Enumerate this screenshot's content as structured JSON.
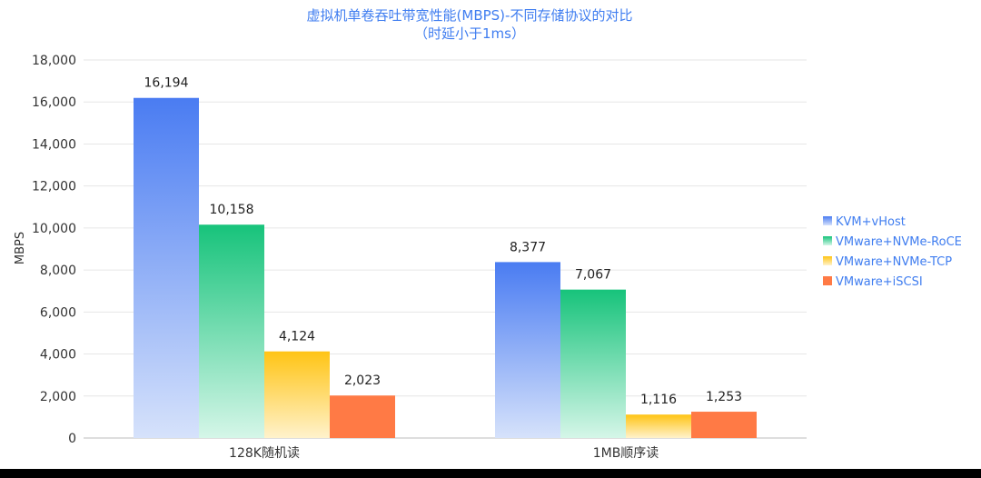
{
  "chart_data": {
    "type": "bar",
    "title": "虚拟机单卷吞吐带宽性能(MBPS)-不同存储协议的对比",
    "subtitle": "（时延小于1ms）",
    "xlabel": "",
    "ylabel": "MBPS",
    "ylim": [
      0,
      18000
    ],
    "yticks": [
      0,
      2000,
      4000,
      6000,
      8000,
      10000,
      12000,
      14000,
      16000,
      18000
    ],
    "ytick_labels": [
      "0",
      "2,000",
      "4,000",
      "6,000",
      "8,000",
      "10,000",
      "12,000",
      "14,000",
      "16,000",
      "18,000"
    ],
    "grid": true,
    "legend_position": "right",
    "categories": [
      "128K随机读",
      "1MB顺序读"
    ],
    "series": [
      {
        "name": "KVM+vHost",
        "values": [
          16194,
          8377
        ],
        "labels": [
          "16,194",
          "8,377"
        ],
        "color": "#4a7cf2",
        "color_light": "#d6e2fb"
      },
      {
        "name": "VMware+NVMe-RoCE",
        "values": [
          10158,
          7067
        ],
        "labels": [
          "10,158",
          "7,067"
        ],
        "color": "#17c37b",
        "color_light": "#d5f6e8"
      },
      {
        "name": "VMware+NVMe-TCP",
        "values": [
          4124,
          1116
        ],
        "labels": [
          "4,124",
          "1,116"
        ],
        "color": "#ffc414",
        "color_light": "#fff2cc"
      },
      {
        "name": "VMware+iSCSI",
        "values": [
          2023,
          1253
        ],
        "labels": [
          "2,023",
          "1,253"
        ],
        "color": "#ff7a45",
        "color_light": "#ff7a45"
      }
    ]
  }
}
